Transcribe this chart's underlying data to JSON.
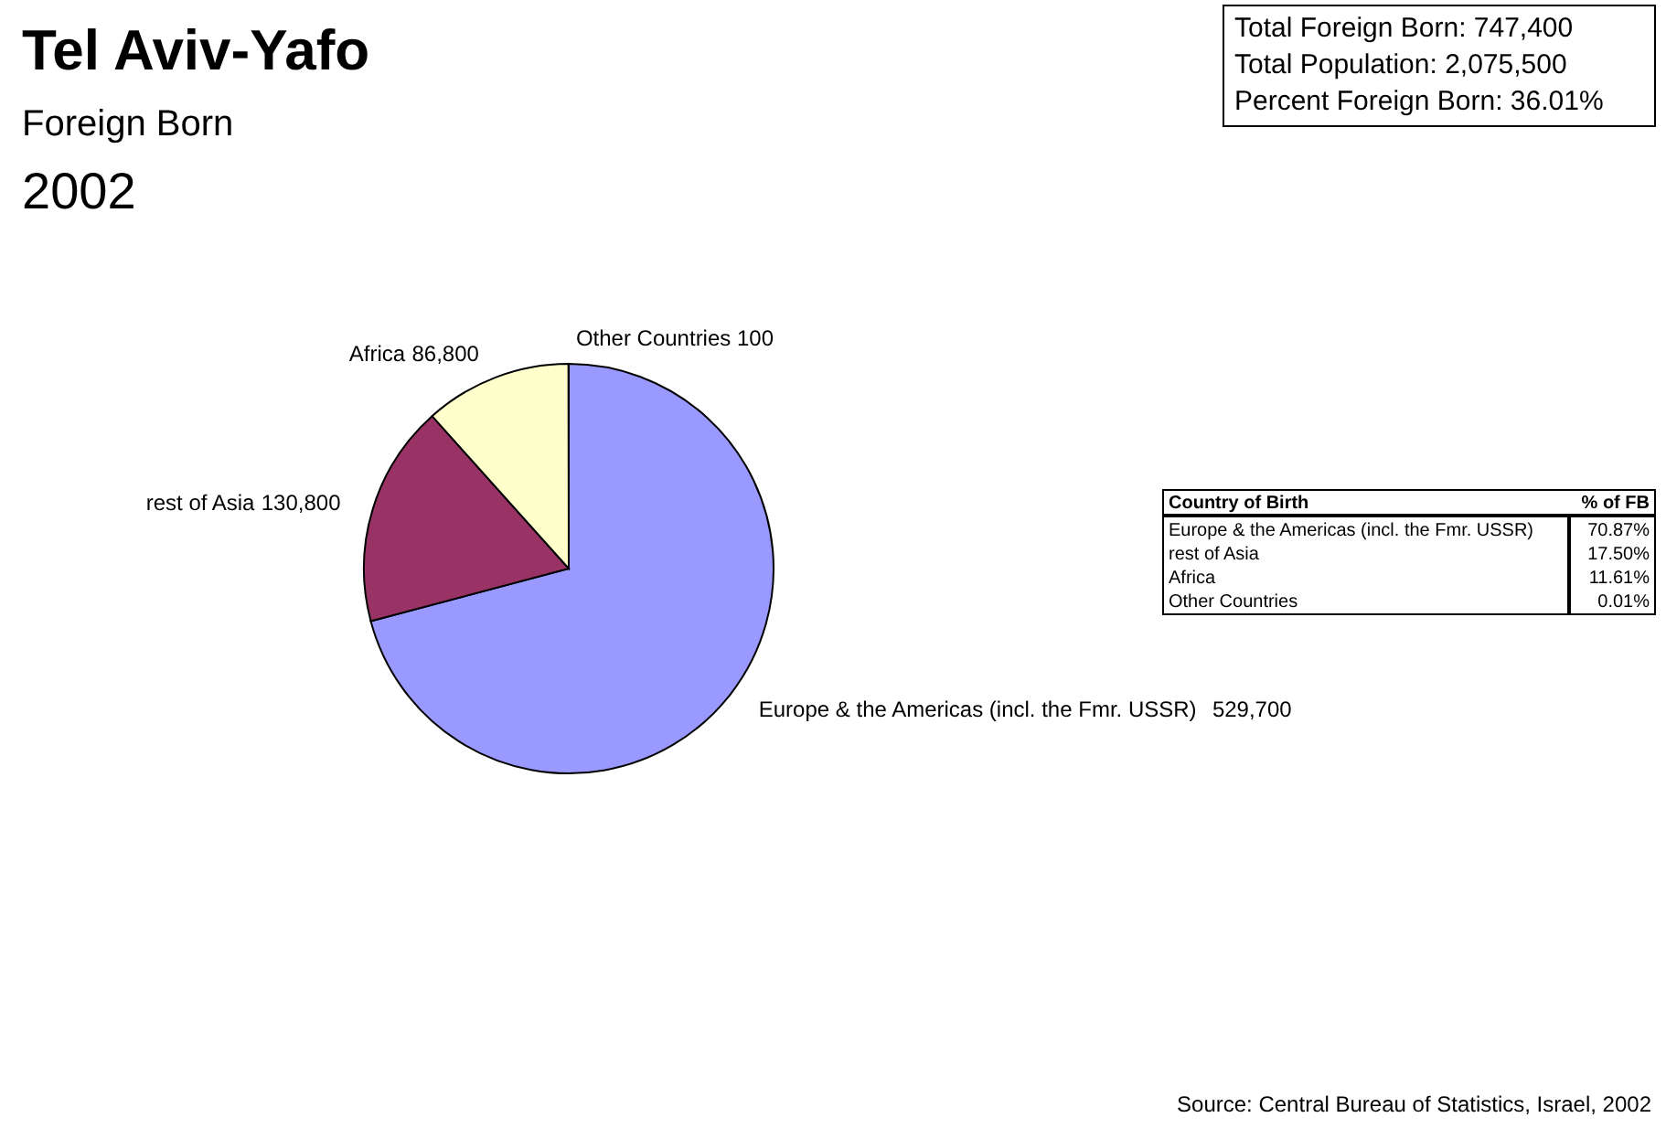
{
  "chart_data": [
    {
      "type": "pie",
      "title": "Tel Aviv-Yafo",
      "subtitle": "Foreign Born\n2002",
      "categories": [
        "Europe & the Americas (incl. the Fmr. USSR)",
        "rest of Asia",
        "Africa",
        "Other Countries"
      ],
      "values": [
        529700,
        130800,
        86800,
        100
      ],
      "colors": [
        "#9999ff",
        "#993366",
        "#ffffcc",
        "#ccffff"
      ],
      "value_labels": [
        "529,700",
        "130,800",
        "86,800",
        "100"
      ],
      "annotations": [
        "Source: Central Bureau of Statistics, Israel, 2002"
      ]
    },
    {
      "type": "other",
      "annotations": [
        "Total Foreign Born:     747,400",
        "Total Population:      2,075,500",
        "Percent Foreign Born:  36.01%"
      ]
    },
    {
      "type": "other",
      "xlabel": "Country of Birth",
      "ylabel": "% of FB",
      "categories": [
        "Europe & the Americas (incl. the Fmr. USSR)",
        "rest of Asia",
        "Africa",
        "Other Countries"
      ],
      "annotations": [
        "70.87%",
        "17.50%",
        "11.61%",
        "0.01%"
      ]
    }
  ]
}
